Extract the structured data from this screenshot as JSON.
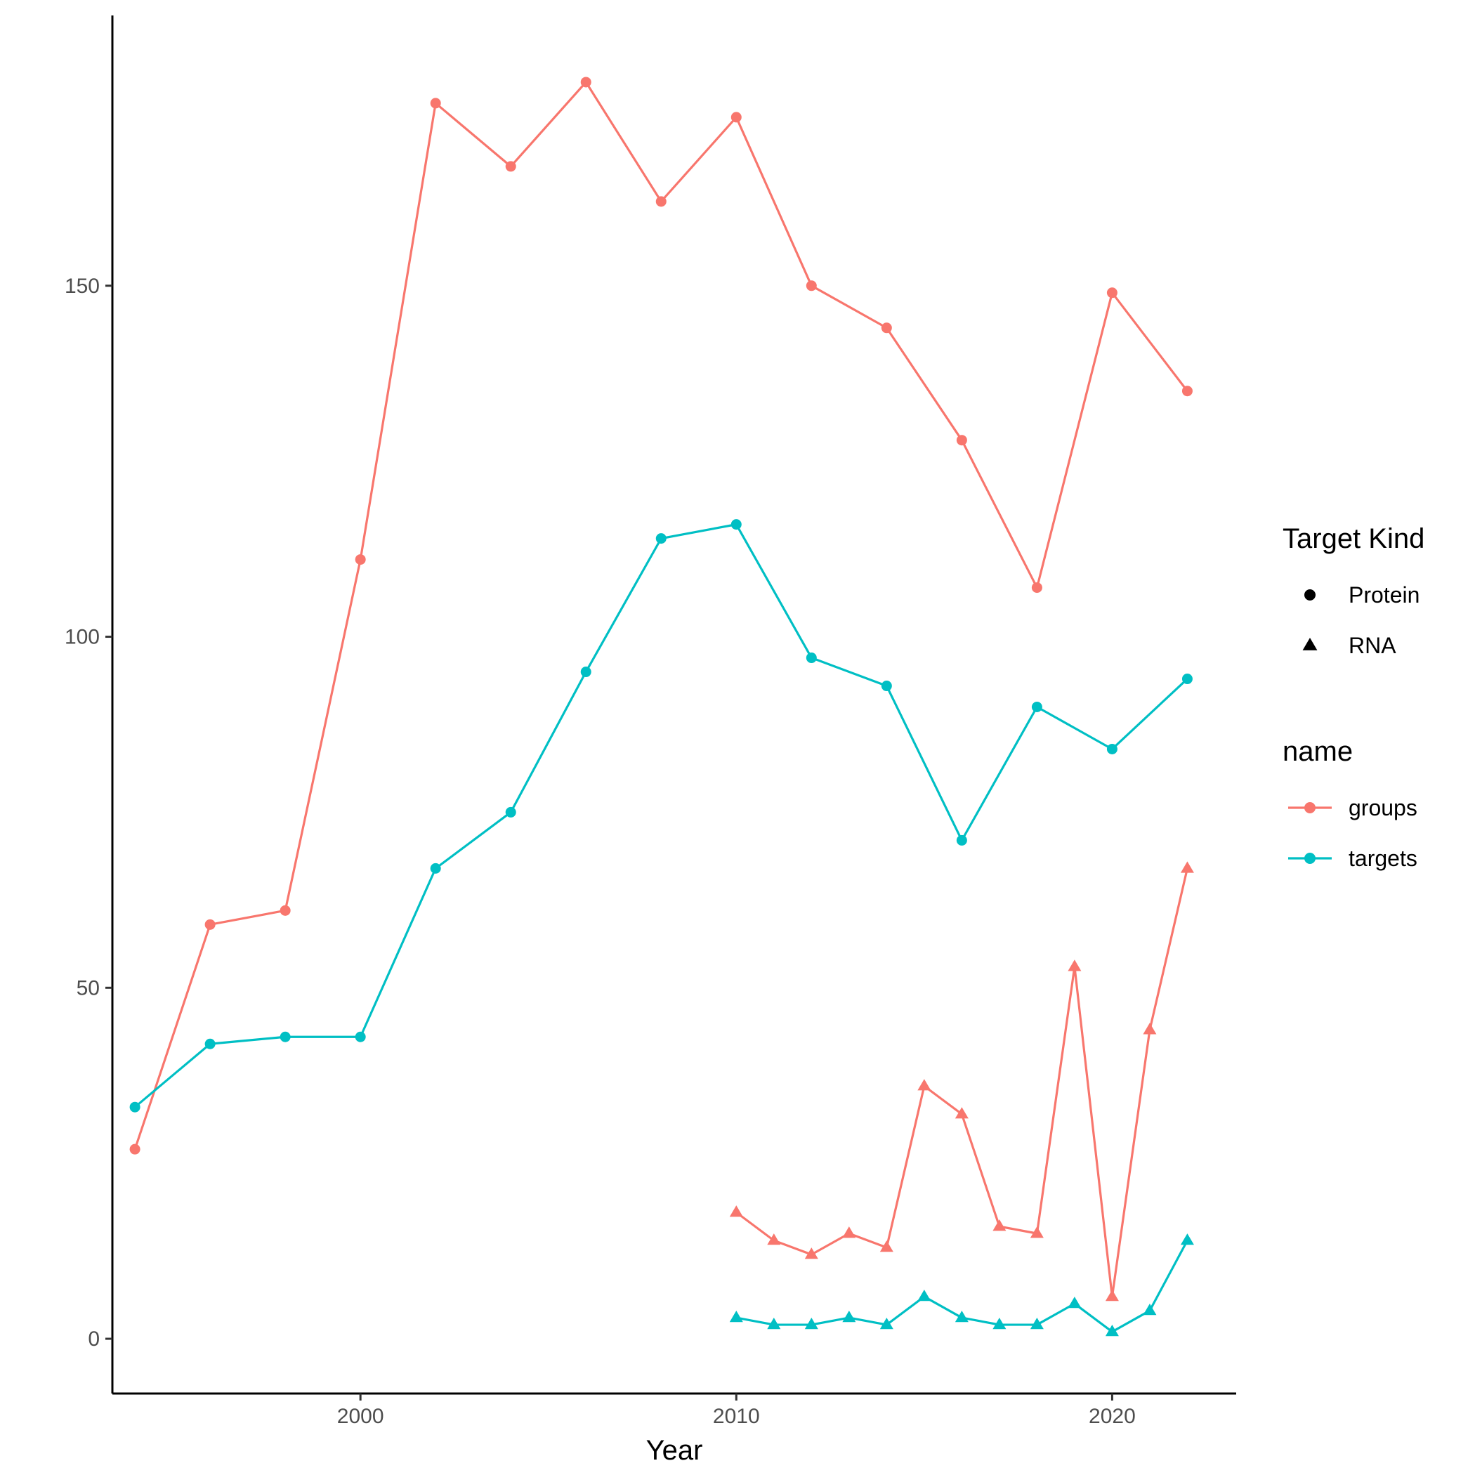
{
  "chart_data": {
    "type": "line",
    "title": "",
    "xlabel": "Year",
    "ylabel": "",
    "xlim": [
      1993.4,
      2023.3
    ],
    "ylim": [
      -7.8,
      188.5
    ],
    "x_ticks": [
      "2000",
      "2010",
      "2020"
    ],
    "y_ticks": [
      "0",
      "50",
      "100",
      "150"
    ],
    "grid": false,
    "legend_position": "right",
    "legends": [
      {
        "title": "Target Kind",
        "entries": [
          {
            "label": "Protein",
            "shape": "circle"
          },
          {
            "label": "RNA",
            "shape": "triangle"
          }
        ]
      },
      {
        "title": "name",
        "entries": [
          {
            "label": "groups",
            "color": "#F8766D"
          },
          {
            "label": "targets",
            "color": "#00BFC4"
          }
        ]
      }
    ],
    "series": [
      {
        "name": "groups",
        "kind": "Protein",
        "color": "#F8766D",
        "shape": "circle",
        "x": [
          1994,
          1996,
          1998,
          2000,
          2002,
          2004,
          2006,
          2008,
          2010,
          2012,
          2014,
          2016,
          2018,
          2020,
          2022
        ],
        "y": [
          27,
          59,
          61,
          111,
          176,
          167,
          179,
          162,
          174,
          150,
          144,
          128,
          107,
          149,
          135
        ]
      },
      {
        "name": "targets",
        "kind": "Protein",
        "color": "#00BFC4",
        "shape": "circle",
        "x": [
          1994,
          1996,
          1998,
          2000,
          2002,
          2004,
          2006,
          2008,
          2010,
          2012,
          2014,
          2016,
          2018,
          2020,
          2022
        ],
        "y": [
          33,
          42,
          43,
          43,
          67,
          75,
          95,
          114,
          116,
          97,
          93,
          71,
          90,
          84,
          94
        ]
      },
      {
        "name": "groups",
        "kind": "RNA",
        "color": "#F8766D",
        "shape": "triangle",
        "x": [
          2010,
          2011,
          2012,
          2013,
          2014,
          2015,
          2016,
          2017,
          2018,
          2019,
          2020,
          2021,
          2022
        ],
        "y": [
          18,
          14,
          12,
          15,
          13,
          36,
          32,
          16,
          15,
          53,
          6,
          44,
          67
        ]
      },
      {
        "name": "targets",
        "kind": "RNA",
        "color": "#00BFC4",
        "shape": "triangle",
        "x": [
          2010,
          2011,
          2012,
          2013,
          2014,
          2015,
          2016,
          2017,
          2018,
          2019,
          2020,
          2021,
          2022
        ],
        "y": [
          3,
          2,
          2,
          3,
          2,
          6,
          3,
          2,
          2,
          5,
          1,
          4,
          14
        ]
      }
    ]
  }
}
